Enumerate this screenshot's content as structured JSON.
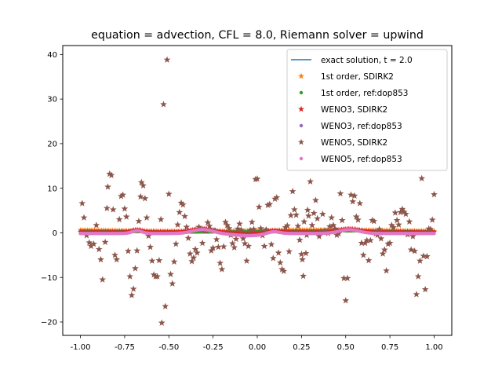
{
  "chart_data": {
    "type": "scatter",
    "title": "equation = advection, CFL = 8.0, Riemann solver = upwind",
    "xlabel": "",
    "ylabel": "",
    "xlim": [
      -1.1,
      1.1
    ],
    "ylim": [
      -23,
      42
    ],
    "xticks": [
      "-1.00",
      "-0.75",
      "-0.50",
      "-0.25",
      "0.00",
      "0.25",
      "0.50",
      "0.75",
      "1.00"
    ],
    "xtick_values": [
      -1.0,
      -0.75,
      -0.5,
      -0.25,
      0.0,
      0.25,
      0.5,
      0.75,
      1.0
    ],
    "yticks": [
      "40",
      "30",
      "20",
      "10",
      "0",
      "−10",
      "−20"
    ],
    "ytick_values": [
      40,
      30,
      20,
      10,
      0,
      -10,
      -20
    ],
    "grid": false,
    "legend_position": "top-right",
    "series": [
      {
        "name": "exact solution, t = 2.0",
        "kind": "line",
        "color": "#1f77b4"
      },
      {
        "name": "1st order, SDIRK2",
        "kind": "star",
        "color": "#ff7f0e"
      },
      {
        "name": "1st order, ref:dop853",
        "kind": "dot",
        "color": "#2ca02c"
      },
      {
        "name": "WENO3, SDIRK2",
        "kind": "star",
        "color": "#d62728"
      },
      {
        "name": "WENO3, ref:dop853",
        "kind": "dot",
        "color": "#9467bd"
      },
      {
        "name": "WENO5, SDIRK2",
        "kind": "star",
        "color": "#8c564b"
      },
      {
        "name": "WENO5, ref:dop853",
        "kind": "dot",
        "color": "#e377c2"
      }
    ],
    "weno5_sdirk2_points": [
      [
        -0.99,
        6.6
      ],
      [
        -0.98,
        3.4
      ],
      [
        -0.965,
        -0.6
      ],
      [
        -0.95,
        -2.2
      ],
      [
        -0.94,
        -3.0
      ],
      [
        -0.925,
        -2.5
      ],
      [
        -0.91,
        1.7
      ],
      [
        -0.895,
        -3.7
      ],
      [
        -0.885,
        -6.0
      ],
      [
        -0.875,
        -10.5
      ],
      [
        -0.86,
        -2.1
      ],
      [
        -0.85,
        5.5
      ],
      [
        -0.845,
        10.3
      ],
      [
        -0.835,
        13.2
      ],
      [
        -0.825,
        12.9
      ],
      [
        -0.815,
        5.2
      ],
      [
        -0.805,
        -5.0
      ],
      [
        -0.795,
        -6.0
      ],
      [
        -0.78,
        3.0
      ],
      [
        -0.77,
        8.2
      ],
      [
        -0.76,
        8.5
      ],
      [
        -0.75,
        5.4
      ],
      [
        -0.74,
        3.6
      ],
      [
        -0.73,
        -4.1
      ],
      [
        -0.72,
        -9.8
      ],
      [
        -0.71,
        -14.0
      ],
      [
        -0.7,
        -12.6
      ],
      [
        -0.69,
        -8.0
      ],
      [
        -0.68,
        -4.0
      ],
      [
        -0.67,
        2.6
      ],
      [
        -0.66,
        8.1
      ],
      [
        -0.655,
        11.3
      ],
      [
        -0.645,
        10.6
      ],
      [
        -0.635,
        7.7
      ],
      [
        -0.625,
        3.4
      ],
      [
        -0.615,
        -0.7
      ],
      [
        -0.605,
        -3.2
      ],
      [
        -0.595,
        -6.3
      ],
      [
        -0.585,
        -9.4
      ],
      [
        -0.575,
        -9.8
      ],
      [
        -0.565,
        -9.8
      ],
      [
        -0.555,
        -6.2
      ],
      [
        -0.545,
        3.0
      ],
      [
        -0.54,
        -20.2
      ],
      [
        -0.53,
        28.8
      ],
      [
        -0.52,
        -16.5
      ],
      [
        -0.51,
        38.8
      ],
      [
        -0.5,
        8.7
      ],
      [
        -0.49,
        -9.3
      ],
      [
        -0.48,
        -11.4
      ],
      [
        -0.47,
        -6.5
      ],
      [
        -0.46,
        -2.5
      ],
      [
        -0.45,
        1.8
      ],
      [
        -0.44,
        4.6
      ],
      [
        -0.43,
        6.7
      ],
      [
        -0.42,
        6.3
      ],
      [
        -0.41,
        3.7
      ],
      [
        -0.4,
        1.3
      ],
      [
        -0.39,
        -1.2
      ],
      [
        -0.38,
        -4.7
      ],
      [
        -0.37,
        -6.4
      ],
      [
        -0.36,
        -5.6
      ],
      [
        -0.35,
        -3.7
      ],
      [
        -0.34,
        -4.5
      ],
      [
        -0.33,
        1.3
      ],
      [
        -0.32,
        0.8
      ],
      [
        -0.31,
        -2.3
      ],
      [
        -0.3,
        0.6
      ],
      [
        -0.29,
        0.4
      ],
      [
        -0.28,
        2.3
      ],
      [
        -0.27,
        1.5
      ],
      [
        -0.26,
        -4.0
      ],
      [
        -0.25,
        -3.4
      ],
      [
        -0.24,
        0.5
      ],
      [
        -0.23,
        -1.5
      ],
      [
        -0.22,
        -3.2
      ],
      [
        -0.21,
        -6.8
      ],
      [
        -0.2,
        -8.2
      ],
      [
        -0.19,
        -3.1
      ],
      [
        -0.18,
        2.4
      ],
      [
        -0.17,
        1.7
      ],
      [
        -0.16,
        1.0
      ],
      [
        -0.15,
        -0.5
      ],
      [
        -0.14,
        -2.4
      ],
      [
        -0.13,
        -3.3
      ],
      [
        -0.12,
        -1.4
      ],
      [
        -0.11,
        0.9
      ],
      [
        -0.1,
        2.0
      ],
      [
        -0.09,
        0.6
      ],
      [
        -0.08,
        -1.3
      ],
      [
        -0.07,
        -2.4
      ],
      [
        -0.06,
        -6.3
      ],
      [
        -0.05,
        -3.0
      ],
      [
        -0.04,
        0.6
      ],
      [
        -0.03,
        2.4
      ],
      [
        -0.02,
        0.8
      ],
      [
        -0.01,
        12.0
      ],
      [
        0.0,
        12.1
      ],
      [
        0.01,
        5.8
      ],
      [
        0.02,
        1.0
      ],
      [
        0.03,
        -0.6
      ],
      [
        0.04,
        -3.0
      ],
      [
        0.05,
        0.7
      ],
      [
        0.06,
        6.2
      ],
      [
        0.07,
        6.4
      ],
      [
        0.08,
        -2.6
      ],
      [
        0.09,
        -5.7
      ],
      [
        0.1,
        7.6
      ],
      [
        0.11,
        7.9
      ],
      [
        0.12,
        -4.5
      ],
      [
        0.13,
        -6.7
      ],
      [
        0.14,
        -8.2
      ],
      [
        0.15,
        -8.6
      ],
      [
        0.16,
        1.2
      ],
      [
        0.17,
        1.6
      ],
      [
        0.18,
        -4.2
      ],
      [
        0.19,
        3.9
      ],
      [
        0.2,
        9.3
      ],
      [
        0.21,
        5.2
      ],
      [
        0.22,
        4.0
      ],
      [
        0.23,
        1.5
      ],
      [
        0.24,
        -1.6
      ],
      [
        0.25,
        -4.8
      ],
      [
        0.255,
        -6.0
      ],
      [
        0.26,
        -9.7
      ],
      [
        0.265,
        2.5
      ],
      [
        0.275,
        -4.6
      ],
      [
        0.28,
        -0.5
      ],
      [
        0.285,
        5.1
      ],
      [
        0.29,
        3.8
      ],
      [
        0.3,
        11.5
      ],
      [
        0.31,
        1.7
      ],
      [
        0.32,
        4.4
      ],
      [
        0.33,
        7.3
      ],
      [
        0.34,
        3.2
      ],
      [
        0.35,
        -0.8
      ],
      [
        0.36,
        0.3
      ],
      [
        0.37,
        4.2
      ],
      [
        0.38,
        0.4
      ],
      [
        0.39,
        0.4
      ],
      [
        0.4,
        -0.1
      ],
      [
        0.41,
        1.4
      ],
      [
        0.42,
        3.4
      ],
      [
        0.43,
        1.7
      ],
      [
        0.44,
        0.9
      ],
      [
        0.45,
        -0.5
      ],
      [
        0.46,
        -0.2
      ],
      [
        0.47,
        8.8
      ],
      [
        0.48,
        2.8
      ],
      [
        0.49,
        -10.2
      ],
      [
        0.5,
        -15.2
      ],
      [
        0.51,
        -10.2
      ],
      [
        0.52,
        0.6
      ],
      [
        0.53,
        8.5
      ],
      [
        0.54,
        7.0
      ],
      [
        0.55,
        8.3
      ],
      [
        0.56,
        3.6
      ],
      [
        0.57,
        2.9
      ],
      [
        0.58,
        6.6
      ],
      [
        0.59,
        -2.3
      ],
      [
        0.6,
        -5.0
      ],
      [
        0.61,
        -2.3
      ],
      [
        0.62,
        -1.7
      ],
      [
        0.63,
        -6.2
      ],
      [
        0.64,
        -1.7
      ],
      [
        0.65,
        2.8
      ],
      [
        0.66,
        2.6
      ],
      [
        0.67,
        -0.2
      ],
      [
        0.68,
        -0.5
      ],
      [
        0.69,
        0.8
      ],
      [
        0.7,
        -1.3
      ],
      [
        0.71,
        -4.7
      ],
      [
        0.72,
        -3.8
      ],
      [
        0.73,
        -8.5
      ],
      [
        0.74,
        -2.5
      ],
      [
        0.75,
        -2.3
      ],
      [
        0.76,
        1.7
      ],
      [
        0.77,
        1.2
      ],
      [
        0.78,
        4.5
      ],
      [
        0.79,
        2.8
      ],
      [
        0.8,
        1.8
      ],
      [
        0.81,
        4.6
      ],
      [
        0.82,
        5.3
      ],
      [
        0.83,
        4.7
      ],
      [
        0.84,
        4.2
      ],
      [
        0.85,
        -0.4
      ],
      [
        0.86,
        2.5
      ],
      [
        0.87,
        -3.8
      ],
      [
        0.88,
        -0.8
      ],
      [
        0.89,
        -4.1
      ],
      [
        0.9,
        -13.8
      ],
      [
        0.91,
        -9.8
      ],
      [
        0.92,
        -6.3
      ],
      [
        0.93,
        12.2
      ],
      [
        0.94,
        -5.2
      ],
      [
        0.95,
        -12.7
      ],
      [
        0.96,
        -5.3
      ],
      [
        0.97,
        0.9
      ],
      [
        0.98,
        0.8
      ],
      [
        0.99,
        2.9
      ],
      [
        1.0,
        8.6
      ]
    ]
  }
}
